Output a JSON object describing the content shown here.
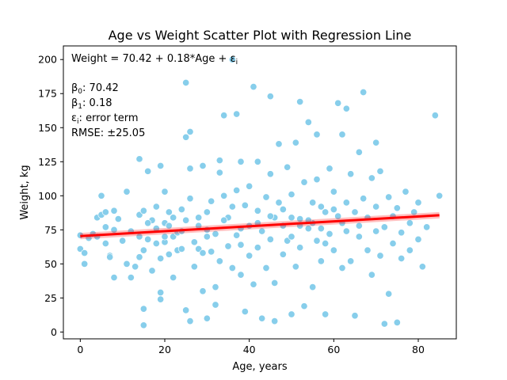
{
  "chart_data": {
    "type": "scatter",
    "title": "Age vs Weight Scatter Plot with Regression Line",
    "xlabel": "Age, years",
    "ylabel": "Weight, kg",
    "xlim": [
      -4,
      89
    ],
    "ylim": [
      -5,
      210
    ],
    "xticks": [
      0,
      20,
      40,
      60,
      80
    ],
    "yticks": [
      0,
      25,
      50,
      75,
      100,
      125,
      150,
      175,
      200
    ],
    "grid": false,
    "point_color": "#87CEEB",
    "line_color": "#FF0000",
    "regression": {
      "intercept": 70.42,
      "slope": 0.18,
      "x_range": [
        0,
        85
      ],
      "rmse": 25.05
    },
    "annotations": {
      "equation": "Weight = 70.42 + 0.18*Age + ε",
      "beta0": "70.42",
      "beta1": "0.18",
      "epsilon_desc": "error term",
      "rmse": "RMSE: ±25.05"
    },
    "points": [
      [
        0,
        61
      ],
      [
        0,
        71
      ],
      [
        1,
        50
      ],
      [
        1,
        58
      ],
      [
        2,
        69
      ],
      [
        3,
        72
      ],
      [
        4,
        70
      ],
      [
        4,
        84
      ],
      [
        5,
        100
      ],
      [
        5,
        86
      ],
      [
        6,
        88
      ],
      [
        6,
        65
      ],
      [
        6,
        77
      ],
      [
        7,
        56
      ],
      [
        7,
        55
      ],
      [
        8,
        40
      ],
      [
        8,
        89
      ],
      [
        8,
        75
      ],
      [
        9,
        83
      ],
      [
        10,
        67
      ],
      [
        11,
        50
      ],
      [
        11,
        103
      ],
      [
        12,
        74
      ],
      [
        12,
        40
      ],
      [
        13,
        48
      ],
      [
        14,
        86
      ],
      [
        14,
        127
      ],
      [
        14,
        55
      ],
      [
        15,
        5
      ],
      [
        15,
        17
      ],
      [
        15,
        60
      ],
      [
        15,
        89
      ],
      [
        16,
        118
      ],
      [
        16,
        68
      ],
      [
        17,
        82
      ],
      [
        17,
        45
      ],
      [
        18,
        65
      ],
      [
        18,
        92
      ],
      [
        19,
        24
      ],
      [
        19,
        29
      ],
      [
        19,
        54
      ],
      [
        19,
        122
      ],
      [
        20,
        66
      ],
      [
        20,
        80
      ],
      [
        20,
        103
      ],
      [
        21,
        78
      ],
      [
        21,
        57
      ],
      [
        21,
        88
      ],
      [
        22,
        40
      ],
      [
        22,
        70
      ],
      [
        23,
        60
      ],
      [
        23,
        73
      ],
      [
        24,
        61
      ],
      [
        24,
        90
      ],
      [
        25,
        82
      ],
      [
        25,
        143
      ],
      [
        25,
        183
      ],
      [
        25,
        16
      ],
      [
        26,
        8
      ],
      [
        26,
        147
      ],
      [
        26,
        120
      ],
      [
        26,
        98
      ],
      [
        27,
        66
      ],
      [
        27,
        48
      ],
      [
        28,
        84
      ],
      [
        28,
        61
      ],
      [
        29,
        122
      ],
      [
        29,
        30
      ],
      [
        29,
        58
      ],
      [
        30,
        10
      ],
      [
        30,
        75
      ],
      [
        30,
        88
      ],
      [
        31,
        96
      ],
      [
        31,
        59
      ],
      [
        32,
        33
      ],
      [
        32,
        72
      ],
      [
        32,
        20
      ],
      [
        33,
        117
      ],
      [
        33,
        126
      ],
      [
        33,
        52
      ],
      [
        34,
        159
      ],
      [
        34,
        100
      ],
      [
        35,
        84
      ],
      [
        35,
        63
      ],
      [
        36,
        47
      ],
      [
        36,
        92
      ],
      [
        36,
        200
      ],
      [
        37,
        160
      ],
      [
        37,
        71
      ],
      [
        37,
        104
      ],
      [
        38,
        125
      ],
      [
        38,
        42
      ],
      [
        38,
        64
      ],
      [
        39,
        93
      ],
      [
        39,
        15
      ],
      [
        40,
        78
      ],
      [
        40,
        107
      ],
      [
        40,
        56
      ],
      [
        41,
        180
      ],
      [
        41,
        35
      ],
      [
        42,
        89
      ],
      [
        42,
        62
      ],
      [
        42,
        125
      ],
      [
        43,
        74
      ],
      [
        43,
        10
      ],
      [
        44,
        47
      ],
      [
        44,
        99
      ],
      [
        45,
        173
      ],
      [
        45,
        68
      ],
      [
        45,
        116
      ],
      [
        46,
        36
      ],
      [
        46,
        84
      ],
      [
        46,
        8
      ],
      [
        47,
        138
      ],
      [
        47,
        95
      ],
      [
        48,
        57
      ],
      [
        48,
        78
      ],
      [
        49,
        121
      ],
      [
        49,
        67
      ],
      [
        50,
        13
      ],
      [
        50,
        101
      ],
      [
        50,
        84
      ],
      [
        51,
        139
      ],
      [
        51,
        48
      ],
      [
        52,
        169
      ],
      [
        52,
        83
      ],
      [
        52,
        62
      ],
      [
        53,
        19
      ],
      [
        53,
        110
      ],
      [
        54,
        154
      ],
      [
        54,
        76
      ],
      [
        55,
        95
      ],
      [
        55,
        33
      ],
      [
        56,
        112
      ],
      [
        56,
        145
      ],
      [
        56,
        67
      ],
      [
        57,
        92
      ],
      [
        57,
        52
      ],
      [
        58,
        13
      ],
      [
        58,
        88
      ],
      [
        59,
        120
      ],
      [
        59,
        72
      ],
      [
        60,
        103
      ],
      [
        60,
        60
      ],
      [
        61,
        168
      ],
      [
        61,
        85
      ],
      [
        62,
        47
      ],
      [
        62,
        145
      ],
      [
        63,
        164
      ],
      [
        63,
        74
      ],
      [
        63,
        95
      ],
      [
        64,
        116
      ],
      [
        64,
        52
      ],
      [
        65,
        12
      ],
      [
        65,
        88
      ],
      [
        66,
        132
      ],
      [
        66,
        70
      ],
      [
        67,
        176
      ],
      [
        67,
        98
      ],
      [
        68,
        60
      ],
      [
        68,
        84
      ],
      [
        69,
        113
      ],
      [
        69,
        42
      ],
      [
        70,
        74
      ],
      [
        70,
        139
      ],
      [
        70,
        92
      ],
      [
        71,
        56
      ],
      [
        71,
        118
      ],
      [
        72,
        6
      ],
      [
        72,
        77
      ],
      [
        73,
        99
      ],
      [
        73,
        28
      ],
      [
        74,
        65
      ],
      [
        74,
        85
      ],
      [
        75,
        7
      ],
      [
        75,
        91
      ],
      [
        76,
        73
      ],
      [
        76,
        54
      ],
      [
        77,
        103
      ],
      [
        78,
        80
      ],
      [
        78,
        60
      ],
      [
        79,
        88
      ],
      [
        80,
        68
      ],
      [
        80,
        95
      ],
      [
        81,
        48
      ],
      [
        82,
        77
      ],
      [
        84,
        159
      ],
      [
        85,
        100
      ],
      [
        62,
        80
      ],
      [
        50,
        70
      ],
      [
        55,
        80
      ],
      [
        45,
        85
      ],
      [
        60,
        90
      ],
      [
        52,
        78
      ],
      [
        58,
        65
      ],
      [
        48,
        90
      ],
      [
        54,
        82
      ],
      [
        57,
        76
      ],
      [
        66,
        78
      ],
      [
        42,
        80
      ],
      [
        38,
        76
      ],
      [
        34,
        82
      ],
      [
        30,
        70
      ],
      [
        28,
        78
      ],
      [
        24,
        74
      ],
      [
        22,
        84
      ],
      [
        20,
        70
      ],
      [
        18,
        76
      ],
      [
        16,
        80
      ],
      [
        14,
        70
      ]
    ]
  }
}
